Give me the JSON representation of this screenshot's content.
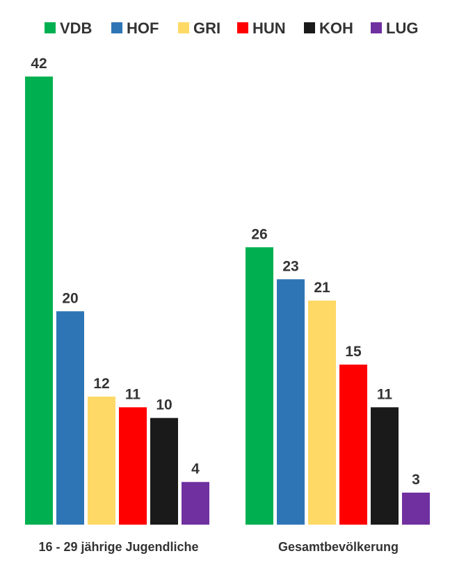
{
  "chart_data": {
    "type": "bar",
    "title": "",
    "xlabel": "",
    "ylabel": "",
    "categories": [
      "16 - 29 jährige Jugendliche",
      "Gesamtbevölkerung"
    ],
    "series": [
      {
        "name": "VDB",
        "color": "#00b050",
        "values": [
          42,
          26
        ]
      },
      {
        "name": "HOF",
        "color": "#2e75b6",
        "values": [
          20,
          23
        ]
      },
      {
        "name": "GRI",
        "color": "#ffd966",
        "values": [
          12,
          21
        ]
      },
      {
        "name": "HUN",
        "color": "#ff0000",
        "values": [
          11,
          15
        ]
      },
      {
        "name": "KOH",
        "color": "#1a1a1a",
        "values": [
          10,
          11
        ]
      },
      {
        "name": "LUG",
        "color": "#7030a0",
        "values": [
          4,
          3
        ]
      }
    ],
    "ylim": [
      0,
      42
    ],
    "grid": false,
    "legend": "top"
  }
}
